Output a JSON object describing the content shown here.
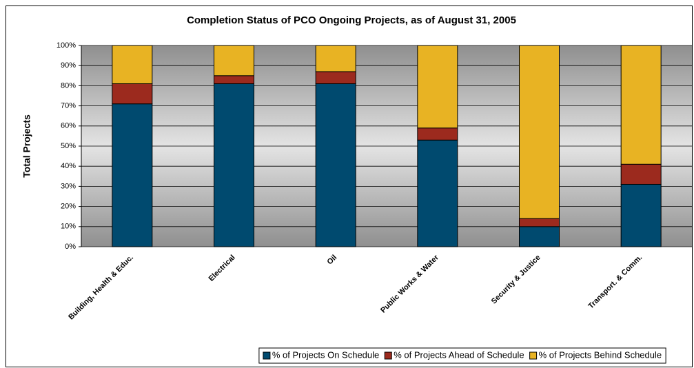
{
  "chart_data": {
    "type": "stacked_bar",
    "title": "Completion Status of PCO Ongoing Projects, as of August 31, 2005",
    "y_label": "Total Projects",
    "categories": [
      "Building, Health & Educ.",
      "Electrical",
      "Oil",
      "Public Works & Water",
      "Security & Justice",
      "Transport. & Comm."
    ],
    "series": [
      {
        "name": "% of Projects On Schedule",
        "color": "#004a6f",
        "values": [
          71,
          81,
          81,
          53,
          10,
          31
        ]
      },
      {
        "name": "% of Projects Ahead of Schedule",
        "color": "#9c2a1e",
        "values": [
          10,
          4,
          6,
          6,
          4,
          10
        ]
      },
      {
        "name": "% of Projects Behind Schedule",
        "color": "#e8b323",
        "values": [
          19,
          15,
          13,
          41,
          86,
          59
        ]
      }
    ],
    "ylim": [
      0,
      100
    ],
    "yticks": [
      {
        "value": 0,
        "label": "0%"
      },
      {
        "value": 10,
        "label": "10%"
      },
      {
        "value": 20,
        "label": "20%"
      },
      {
        "value": 30,
        "label": "30%"
      },
      {
        "value": 40,
        "label": "40%"
      },
      {
        "value": 50,
        "label": "50%"
      },
      {
        "value": 60,
        "label": "60%"
      },
      {
        "value": 70,
        "label": "70%"
      },
      {
        "value": 80,
        "label": "80%"
      },
      {
        "value": 90,
        "label": "90%"
      },
      {
        "value": 100,
        "label": "100%"
      }
    ],
    "grid": true,
    "legend": "bottom"
  }
}
